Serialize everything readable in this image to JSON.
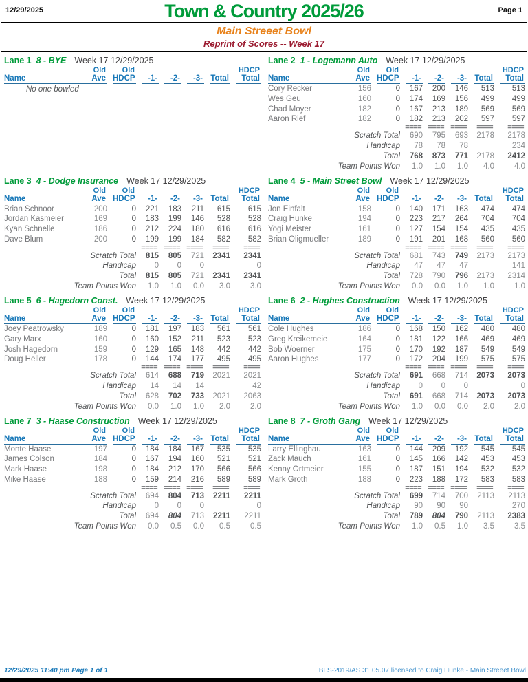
{
  "page": {
    "top_date": "12/29/2025",
    "title": "Town & Country 2025/26",
    "page_label": "Page 1",
    "center_name": "Main Streeet Bowl",
    "reprint_line": "Reprint of Scores -- Week 17",
    "footer_left": "12/29/2025  11:40 pm  Page 1 of 1",
    "footer_right": "BLS-2019/AS 31.05.07 licensed to Craig Hunke - Main Streeet Bowl"
  },
  "labels": {
    "week": "Week 17",
    "week_date": "12/29/2025",
    "old": "Old",
    "name": "Name",
    "ave": "Ave",
    "hdcp": "HDCP",
    "game1": "-1-",
    "game2": "-2-",
    "game3": "-3-",
    "total": "Total",
    "hdcp_total_line1": "HDCP",
    "hdcp_total_line2": "Total",
    "separator": "====",
    "scratch_total": "Scratch Total",
    "handicap": "Handicap",
    "total_row": "Total",
    "team_points": "Team Points Won",
    "no_one_bowled": "No one bowled"
  },
  "colors": {
    "green": "#009B3A",
    "orange": "#E8821B",
    "maroon": "#9B1B30",
    "header_blue": "#1878B8",
    "name_gray": "#76777A",
    "value_gray": "#525456"
  },
  "lanes": [
    {
      "lane": "Lane 1",
      "team": "8 - BYE",
      "no_bowl": true,
      "players": [],
      "totals": null
    },
    {
      "lane": "Lane 2",
      "team": "1 - Logemann Auto",
      "no_bowl": false,
      "players": [
        {
          "name": "Cory Recker",
          "ave": "156",
          "hdcp": "0",
          "g1": "167",
          "g2": "200",
          "g3": "146",
          "total": "513",
          "hdcp_total": "513"
        },
        {
          "name": "Wes Geu",
          "ave": "160",
          "hdcp": "0",
          "g1": "174",
          "g2": "169",
          "g3": "156",
          "total": "499",
          "hdcp_total": "499"
        },
        {
          "name": "Chad Moyer",
          "ave": "182",
          "hdcp": "0",
          "g1": "167",
          "g2": "213",
          "g3": "189",
          "total": "569",
          "hdcp_total": "569"
        },
        {
          "name": "Aaron Rief",
          "ave": "182",
          "hdcp": "0",
          "g1": "182",
          "g2": "213",
          "g3": "202",
          "total": "597",
          "hdcp_total": "597"
        }
      ],
      "totals": {
        "scratch": {
          "v": [
            "690",
            "795",
            "693",
            "2178",
            "2178"
          ],
          "s": [
            "",
            "",
            "",
            "",
            ""
          ]
        },
        "handicap": {
          "v": [
            "78",
            "78",
            "78",
            "",
            "234"
          ],
          "s": [
            "",
            "",
            "",
            "",
            ""
          ]
        },
        "total": {
          "v": [
            "768",
            "873",
            "771",
            "2178",
            "2412"
          ],
          "s": [
            "b",
            "b",
            "b",
            "",
            "b"
          ]
        },
        "points": {
          "v": [
            "1.0",
            "1.0",
            "1.0",
            "4.0",
            "4.0"
          ],
          "s": [
            "",
            "",
            "",
            "",
            ""
          ]
        }
      }
    },
    {
      "lane": "Lane 3",
      "team": "4 - Dodge Insurance",
      "no_bowl": false,
      "players": [
        {
          "name": "Brian Schnoor",
          "ave": "200",
          "hdcp": "0",
          "g1": "221",
          "g2": "183",
          "g3": "211",
          "total": "615",
          "hdcp_total": "615"
        },
        {
          "name": "Jordan Kasmeier",
          "ave": "169",
          "hdcp": "0",
          "g1": "183",
          "g2": "199",
          "g3": "146",
          "total": "528",
          "hdcp_total": "528"
        },
        {
          "name": "Kyan Schnelle",
          "ave": "186",
          "hdcp": "0",
          "g1": "212",
          "g2": "224",
          "g3": "180",
          "total": "616",
          "hdcp_total": "616"
        },
        {
          "name": "Dave Blum",
          "ave": "200",
          "hdcp": "0",
          "g1": "199",
          "g2": "199",
          "g3": "184",
          "total": "582",
          "hdcp_total": "582"
        }
      ],
      "totals": {
        "scratch": {
          "v": [
            "815",
            "805",
            "721",
            "2341",
            "2341"
          ],
          "s": [
            "b",
            "b",
            "",
            "b",
            "b"
          ]
        },
        "handicap": {
          "v": [
            "0",
            "0",
            "0",
            "",
            "0"
          ],
          "s": [
            "",
            "",
            "",
            "",
            ""
          ]
        },
        "total": {
          "v": [
            "815",
            "805",
            "721",
            "2341",
            "2341"
          ],
          "s": [
            "b",
            "b",
            "",
            "b",
            "b"
          ]
        },
        "points": {
          "v": [
            "1.0",
            "1.0",
            "0.0",
            "3.0",
            "3.0"
          ],
          "s": [
            "",
            "",
            "",
            "",
            ""
          ]
        }
      }
    },
    {
      "lane": "Lane 4",
      "team": "5 - Main Street Bowl",
      "no_bowl": false,
      "players": [
        {
          "name": "Jon Einfalt",
          "ave": "158",
          "hdcp": "0",
          "g1": "140",
          "g2": "171",
          "g3": "163",
          "total": "474",
          "hdcp_total": "474"
        },
        {
          "name": "Craig Hunke",
          "ave": "194",
          "hdcp": "0",
          "g1": "223",
          "g2": "217",
          "g3": "264",
          "total": "704",
          "hdcp_total": "704"
        },
        {
          "name": "Yogi Meister",
          "ave": "161",
          "hdcp": "0",
          "g1": "127",
          "g2": "154",
          "g3": "154",
          "total": "435",
          "hdcp_total": "435"
        },
        {
          "name": "Brian Oligmueller",
          "ave": "189",
          "hdcp": "0",
          "g1": "191",
          "g2": "201",
          "g3": "168",
          "total": "560",
          "hdcp_total": "560"
        }
      ],
      "totals": {
        "scratch": {
          "v": [
            "681",
            "743",
            "749",
            "2173",
            "2173"
          ],
          "s": [
            "",
            "",
            "b",
            "",
            ""
          ]
        },
        "handicap": {
          "v": [
            "47",
            "47",
            "47",
            "",
            "141"
          ],
          "s": [
            "",
            "",
            "",
            "",
            ""
          ]
        },
        "total": {
          "v": [
            "728",
            "790",
            "796",
            "2173",
            "2314"
          ],
          "s": [
            "",
            "",
            "b",
            "",
            ""
          ]
        },
        "points": {
          "v": [
            "0.0",
            "0.0",
            "1.0",
            "1.0",
            "1.0"
          ],
          "s": [
            "",
            "",
            "",
            "",
            ""
          ]
        }
      }
    },
    {
      "lane": "Lane 5",
      "team": "6 - Hagedorn Const.",
      "no_bowl": false,
      "players": [
        {
          "name": "Joey Peatrowsky",
          "ave": "189",
          "hdcp": "0",
          "g1": "181",
          "g2": "197",
          "g3": "183",
          "total": "561",
          "hdcp_total": "561"
        },
        {
          "name": "Gary Marx",
          "ave": "160",
          "hdcp": "0",
          "g1": "160",
          "g2": "152",
          "g3": "211",
          "total": "523",
          "hdcp_total": "523"
        },
        {
          "name": "Josh Hagedorn",
          "ave": "159",
          "hdcp": "0",
          "g1": "129",
          "g2": "165",
          "g3": "148",
          "total": "442",
          "hdcp_total": "442"
        },
        {
          "name": "Doug Heller",
          "ave": "178",
          "hdcp": "0",
          "g1": "144",
          "g2": "174",
          "g3": "177",
          "total": "495",
          "hdcp_total": "495"
        }
      ],
      "totals": {
        "scratch": {
          "v": [
            "614",
            "688",
            "719",
            "2021",
            "2021"
          ],
          "s": [
            "",
            "b",
            "b",
            "",
            ""
          ]
        },
        "handicap": {
          "v": [
            "14",
            "14",
            "14",
            "",
            "42"
          ],
          "s": [
            "",
            "",
            "",
            "",
            ""
          ]
        },
        "total": {
          "v": [
            "628",
            "702",
            "733",
            "2021",
            "2063"
          ],
          "s": [
            "",
            "b",
            "b",
            "",
            ""
          ]
        },
        "points": {
          "v": [
            "0.0",
            "1.0",
            "1.0",
            "2.0",
            "2.0"
          ],
          "s": [
            "",
            "",
            "",
            "",
            ""
          ]
        }
      }
    },
    {
      "lane": "Lane 6",
      "team": "2 - Hughes Construction",
      "no_bowl": false,
      "players": [
        {
          "name": "Cole Hughes",
          "ave": "186",
          "hdcp": "0",
          "g1": "168",
          "g2": "150",
          "g3": "162",
          "total": "480",
          "hdcp_total": "480"
        },
        {
          "name": "Greg Kreikemeie",
          "ave": "164",
          "hdcp": "0",
          "g1": "181",
          "g2": "122",
          "g3": "166",
          "total": "469",
          "hdcp_total": "469"
        },
        {
          "name": "Bob Woerner",
          "ave": "175",
          "hdcp": "0",
          "g1": "170",
          "g2": "192",
          "g3": "187",
          "total": "549",
          "hdcp_total": "549"
        },
        {
          "name": "Aaron Hughes",
          "ave": "177",
          "hdcp": "0",
          "g1": "172",
          "g2": "204",
          "g3": "199",
          "total": "575",
          "hdcp_total": "575"
        }
      ],
      "totals": {
        "scratch": {
          "v": [
            "691",
            "668",
            "714",
            "2073",
            "2073"
          ],
          "s": [
            "b",
            "",
            "",
            "b",
            "b"
          ]
        },
        "handicap": {
          "v": [
            "0",
            "0",
            "0",
            "",
            "0"
          ],
          "s": [
            "",
            "",
            "",
            "",
            ""
          ]
        },
        "total": {
          "v": [
            "691",
            "668",
            "714",
            "2073",
            "2073"
          ],
          "s": [
            "b",
            "",
            "",
            "b",
            "b"
          ]
        },
        "points": {
          "v": [
            "1.0",
            "0.0",
            "0.0",
            "2.0",
            "2.0"
          ],
          "s": [
            "",
            "",
            "",
            "",
            ""
          ]
        }
      }
    },
    {
      "lane": "Lane 7",
      "team": "3 - Haase Construction",
      "no_bowl": false,
      "players": [
        {
          "name": "Monte Haase",
          "ave": "197",
          "hdcp": "0",
          "g1": "184",
          "g2": "184",
          "g3": "167",
          "total": "535",
          "hdcp_total": "535"
        },
        {
          "name": "James Colson",
          "ave": "184",
          "hdcp": "0",
          "g1": "167",
          "g2": "194",
          "g3": "160",
          "total": "521",
          "hdcp_total": "521"
        },
        {
          "name": "Mark Haase",
          "ave": "198",
          "hdcp": "0",
          "g1": "184",
          "g2": "212",
          "g3": "170",
          "total": "566",
          "hdcp_total": "566"
        },
        {
          "name": "Mike Haase",
          "ave": "188",
          "hdcp": "0",
          "g1": "159",
          "g2": "214",
          "g3": "216",
          "total": "589",
          "hdcp_total": "589"
        }
      ],
      "totals": {
        "scratch": {
          "v": [
            "694",
            "804",
            "713",
            "2211",
            "2211"
          ],
          "s": [
            "",
            "b",
            "b",
            "b",
            "b"
          ]
        },
        "handicap": {
          "v": [
            "0",
            "0",
            "0",
            "",
            "0"
          ],
          "s": [
            "",
            "",
            "",
            "",
            ""
          ]
        },
        "total": {
          "v": [
            "694",
            "804",
            "713",
            "2211",
            "2211"
          ],
          "s": [
            "",
            "bi",
            "",
            "b",
            ""
          ]
        },
        "points": {
          "v": [
            "0.0",
            "0.5",
            "0.0",
            "0.5",
            "0.5"
          ],
          "s": [
            "",
            "",
            "",
            "",
            ""
          ]
        }
      }
    },
    {
      "lane": "Lane 8",
      "team": "7 - Groth Gang",
      "no_bowl": false,
      "players": [
        {
          "name": "Larry Ellinghau",
          "ave": "163",
          "hdcp": "0",
          "g1": "144",
          "g2": "209",
          "g3": "192",
          "total": "545",
          "hdcp_total": "545"
        },
        {
          "name": "Zack Mauch",
          "ave": "161",
          "hdcp": "0",
          "g1": "145",
          "g2": "166",
          "g3": "142",
          "total": "453",
          "hdcp_total": "453"
        },
        {
          "name": "Kenny Ortmeier",
          "ave": "155",
          "hdcp": "0",
          "g1": "187",
          "g2": "151",
          "g3": "194",
          "total": "532",
          "hdcp_total": "532"
        },
        {
          "name": "Mark Groth",
          "ave": "188",
          "hdcp": "0",
          "g1": "223",
          "g2": "188",
          "g3": "172",
          "total": "583",
          "hdcp_total": "583"
        }
      ],
      "totals": {
        "scratch": {
          "v": [
            "699",
            "714",
            "700",
            "2113",
            "2113"
          ],
          "s": [
            "b",
            "",
            "",
            "",
            ""
          ]
        },
        "handicap": {
          "v": [
            "90",
            "90",
            "90",
            "",
            "270"
          ],
          "s": [
            "",
            "",
            "",
            "",
            ""
          ]
        },
        "total": {
          "v": [
            "789",
            "804",
            "790",
            "2113",
            "2383"
          ],
          "s": [
            "b",
            "bi",
            "b",
            "",
            "b"
          ]
        },
        "points": {
          "v": [
            "1.0",
            "0.5",
            "1.0",
            "3.5",
            "3.5"
          ],
          "s": [
            "",
            "",
            "",
            "",
            ""
          ]
        }
      }
    }
  ]
}
